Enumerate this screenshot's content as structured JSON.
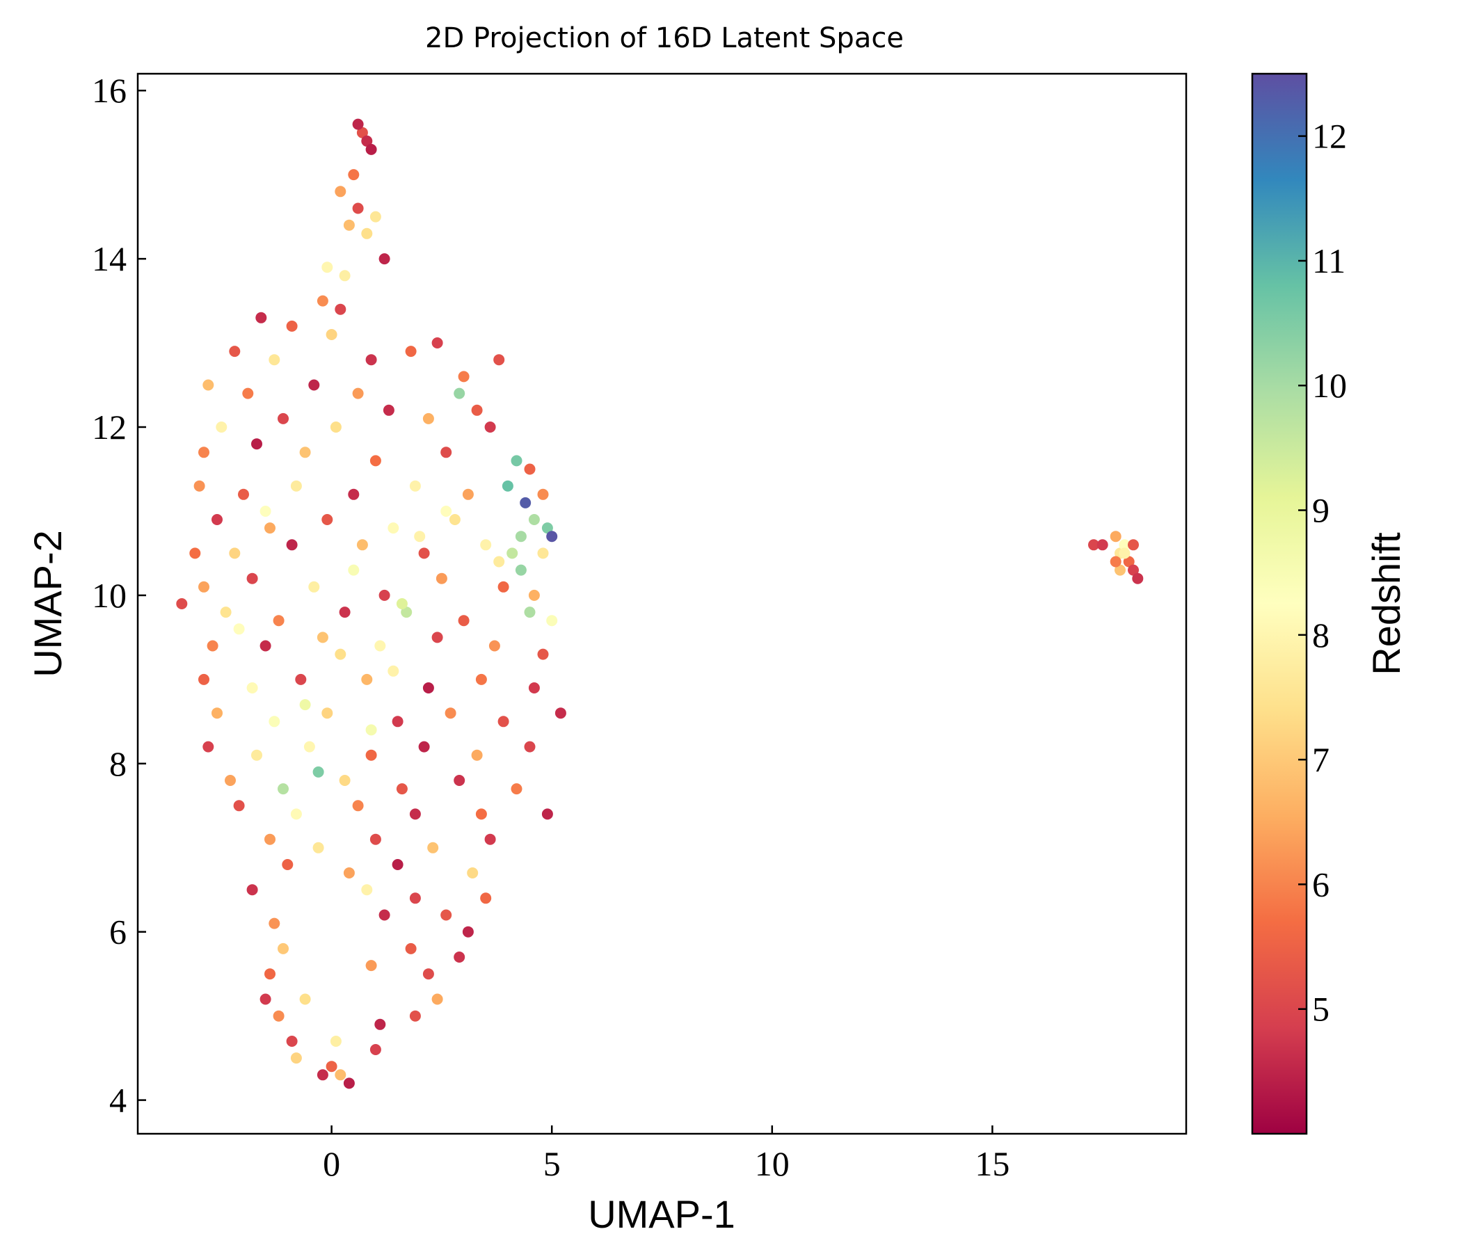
{
  "chart_data": {
    "type": "scatter",
    "title": "2D Projection of 16D Latent Space",
    "xlabel": "UMAP-1",
    "ylabel": "UMAP-2",
    "xlim": [
      -4.4,
      19.4
    ],
    "ylim": [
      3.6,
      16.2
    ],
    "xticks": [
      0,
      5,
      10,
      15
    ],
    "yticks": [
      4,
      6,
      8,
      10,
      12,
      14,
      16
    ],
    "grid": false,
    "colorbar": {
      "label": "Redshift",
      "range": [
        4.0,
        12.5
      ],
      "ticks": [
        5,
        6,
        7,
        8,
        9,
        10,
        11,
        12
      ],
      "colormap": "Spectral",
      "colors": [
        "#9e0142",
        "#d53e4f",
        "#f46d43",
        "#fdae61",
        "#fee08b",
        "#ffffbf",
        "#e6f598",
        "#abdda4",
        "#66c2a5",
        "#3288bd",
        "#5e4fa2"
      ]
    },
    "series": [
      {
        "points": [
          [
            0.7,
            15.5,
            5.2
          ],
          [
            0.8,
            15.4,
            4.6
          ],
          [
            0.9,
            15.3,
            4.4
          ],
          [
            0.5,
            15.0,
            5.8
          ],
          [
            0.2,
            14.8,
            6.4
          ],
          [
            0.6,
            14.6,
            5.1
          ],
          [
            0.4,
            14.4,
            6.8
          ],
          [
            0.8,
            14.3,
            7.4
          ],
          [
            1.2,
            14.0,
            4.5
          ],
          [
            0.3,
            13.8,
            7.8
          ],
          [
            -0.2,
            13.5,
            6.1
          ],
          [
            0.2,
            13.4,
            5.0
          ],
          [
            -1.6,
            13.3,
            4.6
          ],
          [
            -0.9,
            13.2,
            5.5
          ],
          [
            0.0,
            13.1,
            7.2
          ],
          [
            -2.2,
            12.9,
            5.3
          ],
          [
            -1.3,
            12.8,
            7.6
          ],
          [
            0.9,
            12.8,
            4.7
          ],
          [
            1.8,
            12.9,
            5.6
          ],
          [
            2.4,
            13.0,
            4.9
          ],
          [
            3.8,
            12.8,
            5.2
          ],
          [
            -2.8,
            12.5,
            6.8
          ],
          [
            -1.9,
            12.4,
            5.9
          ],
          [
            -0.4,
            12.5,
            4.5
          ],
          [
            0.6,
            12.4,
            6.3
          ],
          [
            2.9,
            12.4,
            10.2
          ],
          [
            3.3,
            12.2,
            5.4
          ],
          [
            -2.5,
            12.0,
            7.9
          ],
          [
            -1.1,
            12.1,
            5.0
          ],
          [
            0.1,
            12.0,
            7.4
          ],
          [
            1.3,
            12.2,
            4.6
          ],
          [
            2.2,
            12.1,
            6.6
          ],
          [
            3.6,
            12.0,
            4.8
          ],
          [
            -2.9,
            11.7,
            6.0
          ],
          [
            -1.7,
            11.8,
            4.4
          ],
          [
            -0.6,
            11.7,
            6.9
          ],
          [
            1.0,
            11.6,
            5.7
          ],
          [
            2.6,
            11.7,
            5.1
          ],
          [
            4.2,
            11.6,
            10.6
          ],
          [
            4.5,
            11.5,
            5.5
          ],
          [
            -3.0,
            11.3,
            6.2
          ],
          [
            -2.0,
            11.2,
            5.4
          ],
          [
            -0.8,
            11.3,
            7.7
          ],
          [
            0.5,
            11.2,
            4.6
          ],
          [
            1.9,
            11.3,
            7.9
          ],
          [
            3.1,
            11.2,
            6.4
          ],
          [
            4.0,
            11.3,
            10.8
          ],
          [
            4.8,
            11.2,
            6.1
          ],
          [
            -2.6,
            10.9,
            4.8
          ],
          [
            -1.4,
            10.8,
            6.5
          ],
          [
            -0.1,
            10.9,
            5.3
          ],
          [
            1.4,
            10.8,
            8.1
          ],
          [
            2.8,
            10.9,
            7.5
          ],
          [
            4.4,
            11.1,
            12.3
          ],
          [
            4.6,
            10.9,
            9.9
          ],
          [
            4.9,
            10.8,
            10.5
          ],
          [
            5.0,
            10.7,
            12.4
          ],
          [
            -3.1,
            10.5,
            5.7
          ],
          [
            -2.2,
            10.5,
            7.2
          ],
          [
            -0.9,
            10.6,
            4.5
          ],
          [
            0.7,
            10.6,
            6.8
          ],
          [
            2.1,
            10.5,
            5.2
          ],
          [
            3.5,
            10.6,
            7.9
          ],
          [
            4.3,
            10.7,
            10.0
          ],
          [
            4.8,
            10.5,
            7.6
          ],
          [
            -2.9,
            10.1,
            6.4
          ],
          [
            -1.8,
            10.2,
            5.0
          ],
          [
            -0.4,
            10.1,
            7.8
          ],
          [
            1.2,
            10.0,
            4.9
          ],
          [
            2.5,
            10.2,
            6.3
          ],
          [
            3.9,
            10.1,
            5.6
          ],
          [
            4.6,
            10.0,
            6.6
          ],
          [
            -3.4,
            9.9,
            5.1
          ],
          [
            -2.4,
            9.8,
            7.5
          ],
          [
            -1.2,
            9.7,
            6.0
          ],
          [
            0.3,
            9.8,
            4.7
          ],
          [
            1.7,
            9.8,
            9.6
          ],
          [
            3.0,
            9.7,
            5.4
          ],
          [
            4.5,
            9.8,
            9.9
          ],
          [
            5.0,
            9.7,
            8.4
          ],
          [
            -2.7,
            9.4,
            6.0
          ],
          [
            -1.5,
            9.4,
            4.6
          ],
          [
            -0.2,
            9.5,
            6.9
          ],
          [
            1.1,
            9.4,
            8.0
          ],
          [
            2.4,
            9.5,
            5.0
          ],
          [
            3.7,
            9.4,
            6.2
          ],
          [
            4.8,
            9.3,
            5.3
          ],
          [
            -2.9,
            9.0,
            5.5
          ],
          [
            -1.8,
            8.9,
            8.1
          ],
          [
            -0.7,
            9.0,
            5.0
          ],
          [
            0.8,
            9.0,
            6.7
          ],
          [
            2.2,
            8.9,
            4.4
          ],
          [
            3.4,
            9.0,
            5.8
          ],
          [
            4.6,
            8.9,
            4.8
          ],
          [
            -2.6,
            8.6,
            6.6
          ],
          [
            -1.3,
            8.5,
            8.4
          ],
          [
            -0.1,
            8.6,
            7.2
          ],
          [
            1.5,
            8.5,
            4.8
          ],
          [
            2.7,
            8.6,
            6.1
          ],
          [
            3.9,
            8.5,
            5.2
          ],
          [
            5.2,
            8.6,
            4.6
          ],
          [
            -2.8,
            8.2,
            4.9
          ],
          [
            -1.7,
            8.1,
            7.7
          ],
          [
            -0.5,
            8.2,
            8.0
          ],
          [
            0.9,
            8.1,
            5.6
          ],
          [
            2.1,
            8.2,
            4.5
          ],
          [
            3.3,
            8.1,
            6.5
          ],
          [
            4.5,
            8.2,
            5.0
          ],
          [
            -2.3,
            7.8,
            6.4
          ],
          [
            -1.1,
            7.7,
            9.8
          ],
          [
            0.3,
            7.8,
            7.3
          ],
          [
            1.6,
            7.7,
            5.3
          ],
          [
            2.9,
            7.8,
            4.7
          ],
          [
            4.2,
            7.7,
            5.9
          ],
          [
            -2.1,
            7.5,
            5.2
          ],
          [
            -0.8,
            7.4,
            8.1
          ],
          [
            0.6,
            7.5,
            6.0
          ],
          [
            1.9,
            7.4,
            4.6
          ],
          [
            3.4,
            7.4,
            5.7
          ],
          [
            4.9,
            7.4,
            4.5
          ],
          [
            -1.4,
            7.1,
            6.3
          ],
          [
            -0.3,
            7.0,
            7.6
          ],
          [
            1.0,
            7.1,
            5.1
          ],
          [
            2.3,
            7.0,
            6.9
          ],
          [
            3.6,
            7.1,
            4.8
          ],
          [
            -1.0,
            6.8,
            5.5
          ],
          [
            0.4,
            6.7,
            6.4
          ],
          [
            1.5,
            6.8,
            4.4
          ],
          [
            3.2,
            6.7,
            7.3
          ],
          [
            -1.8,
            6.5,
            4.7
          ],
          [
            0.8,
            6.5,
            7.9
          ],
          [
            1.9,
            6.4,
            5.0
          ],
          [
            3.5,
            6.4,
            5.6
          ],
          [
            -1.3,
            6.1,
            6.2
          ],
          [
            1.2,
            6.2,
            4.6
          ],
          [
            2.6,
            6.2,
            5.3
          ],
          [
            3.1,
            6.0,
            4.5
          ],
          [
            -1.1,
            5.8,
            7.0
          ],
          [
            1.8,
            5.8,
            5.4
          ],
          [
            2.9,
            5.7,
            4.7
          ],
          [
            -1.4,
            5.5,
            5.6
          ],
          [
            0.9,
            5.6,
            6.3
          ],
          [
            2.2,
            5.5,
            5.1
          ],
          [
            -1.5,
            5.2,
            4.8
          ],
          [
            -0.6,
            5.2,
            7.4
          ],
          [
            2.4,
            5.2,
            6.5
          ],
          [
            -1.2,
            5.0,
            6.1
          ],
          [
            1.1,
            4.9,
            4.5
          ],
          [
            1.9,
            5.0,
            5.2
          ],
          [
            -0.9,
            4.7,
            5.0
          ],
          [
            0.1,
            4.7,
            7.8
          ],
          [
            1.0,
            4.6,
            4.9
          ],
          [
            -0.8,
            4.5,
            7.2
          ],
          [
            0.0,
            4.4,
            5.5
          ],
          [
            -0.2,
            4.3,
            4.6
          ],
          [
            0.4,
            4.2,
            4.4
          ],
          [
            0.2,
            4.3,
            6.8
          ],
          [
            0.6,
            15.6,
            4.5
          ],
          [
            1.0,
            14.5,
            7.6
          ],
          [
            -0.1,
            13.9,
            8.0
          ],
          [
            3.0,
            12.6,
            5.9
          ],
          [
            -1.5,
            11.0,
            8.3
          ],
          [
            0.5,
            10.3,
            8.5
          ],
          [
            1.4,
            9.1,
            7.9
          ],
          [
            -0.6,
            8.7,
            8.8
          ],
          [
            0.2,
            9.3,
            7.4
          ],
          [
            2.6,
            11.0,
            8.2
          ],
          [
            3.8,
            10.4,
            7.7
          ],
          [
            4.1,
            10.5,
            9.6
          ],
          [
            4.3,
            10.3,
            10.2
          ],
          [
            -0.3,
            7.9,
            10.5
          ],
          [
            1.6,
            9.9,
            9.2
          ],
          [
            0.9,
            8.4,
            8.6
          ],
          [
            -2.1,
            9.6,
            8.2
          ],
          [
            2.0,
            10.7,
            7.9
          ],
          [
            17.3,
            10.6,
            5.0
          ],
          [
            17.5,
            10.6,
            4.8
          ],
          [
            17.8,
            10.7,
            6.5
          ],
          [
            17.9,
            10.5,
            7.6
          ],
          [
            18.0,
            10.6,
            8.2
          ],
          [
            18.1,
            10.4,
            5.6
          ],
          [
            17.9,
            10.3,
            6.9
          ],
          [
            18.2,
            10.3,
            4.9
          ],
          [
            18.0,
            10.5,
            7.9
          ],
          [
            17.8,
            10.4,
            5.9
          ],
          [
            18.2,
            10.6,
            5.3
          ],
          [
            18.3,
            10.2,
            4.7
          ]
        ]
      }
    ]
  }
}
